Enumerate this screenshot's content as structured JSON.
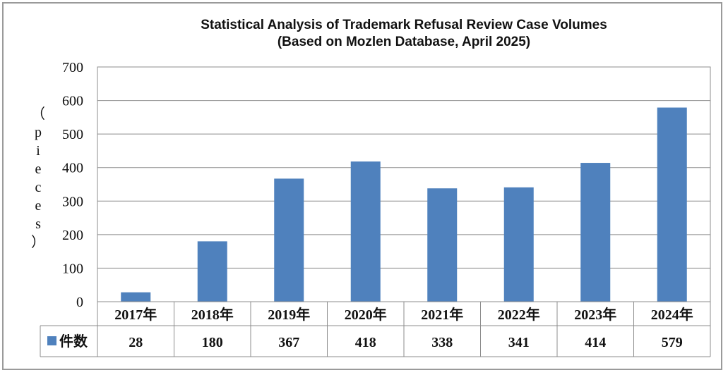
{
  "chart_data": {
    "type": "bar",
    "title": "Statistical Analysis of Trademark Refusal Review Case Volumes",
    "subtitle": "(Based on Mozlen Database, April 2025)",
    "ylabel_chars": [
      "（",
      "p",
      "i",
      "e",
      "c",
      "e",
      "s",
      "）"
    ],
    "xlabel": "",
    "categories": [
      "2017年",
      "2018年",
      "2019年",
      "2020年",
      "2021年",
      "2022年",
      "2023年",
      "2024年"
    ],
    "series": [
      {
        "name": "件数",
        "values": [
          28,
          180,
          367,
          418,
          338,
          341,
          414,
          579
        ]
      }
    ],
    "ylim": [
      0,
      700
    ],
    "yticks": [
      0,
      100,
      200,
      300,
      400,
      500,
      600,
      700
    ],
    "grid": true,
    "legend": "data-table",
    "data_table": true,
    "colors": {
      "bar": "#4f81bd",
      "grid": "#8c8c8c",
      "border": "#9a9a9a"
    }
  }
}
